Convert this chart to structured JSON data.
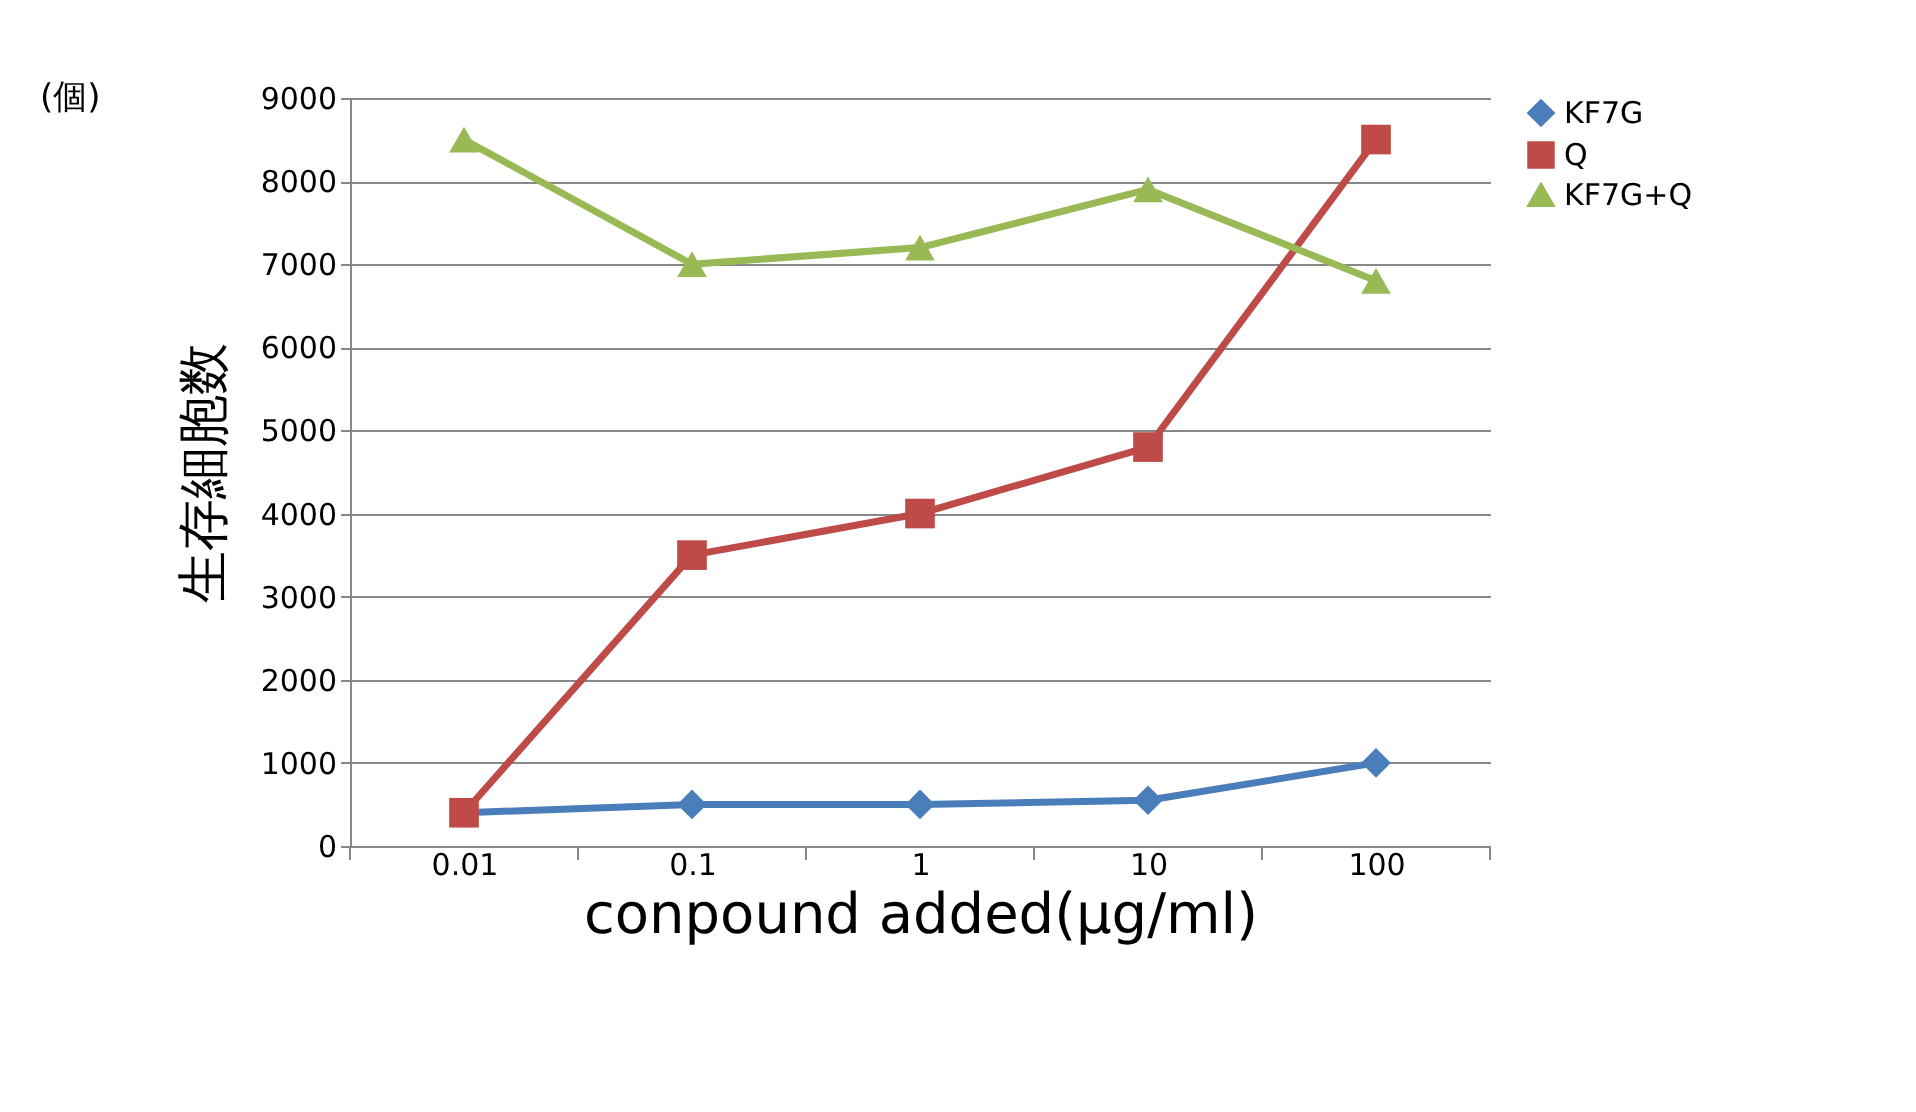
{
  "chart_data": {
    "type": "line",
    "xlabel": "conpound added(μg/ml)",
    "ylabel": "生存細胞数",
    "annotations": [
      "(個)"
    ],
    "categories": [
      "0.01",
      "0.1",
      "1",
      "10",
      "100"
    ],
    "series": [
      {
        "name": "KF7G",
        "color": "#4a7ebb",
        "marker": "diamond",
        "values": [
          400,
          500,
          500,
          550,
          1000
        ]
      },
      {
        "name": "Q",
        "color": "#be4b48",
        "marker": "square",
        "values": [
          400,
          3500,
          4000,
          4800,
          8500
        ]
      },
      {
        "name": "KF7G+Q",
        "color": "#98b954",
        "marker": "triangle",
        "values": [
          8500,
          7000,
          7200,
          7900,
          6800
        ]
      }
    ],
    "ylim": [
      0,
      9000
    ],
    "yticks": [
      0,
      1000,
      2000,
      3000,
      4000,
      5000,
      6000,
      7000,
      8000,
      9000
    ],
    "grid": "y",
    "legend": "right",
    "line_style": "solid"
  }
}
